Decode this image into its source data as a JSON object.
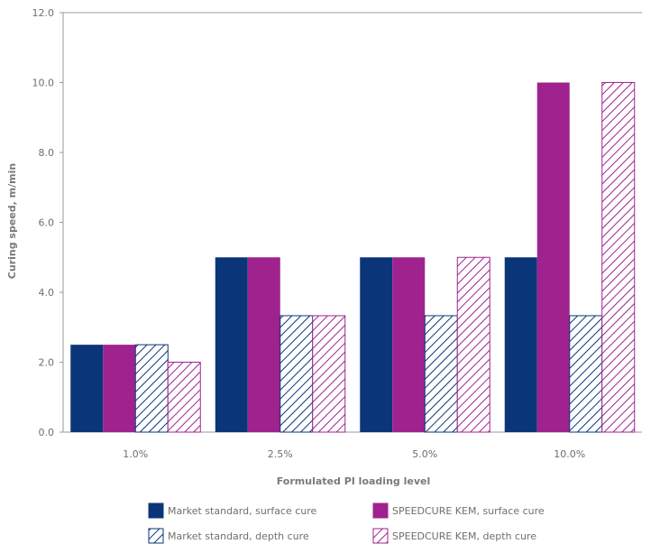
{
  "chart_data": {
    "type": "bar",
    "title": "",
    "xlabel": "Formulated PI loading level",
    "ylabel": "Curing speed, m/min",
    "categories": [
      "1.0%",
      "2.5%",
      "5.0%",
      "10.0%"
    ],
    "ylim": [
      0,
      12
    ],
    "yticks": [
      "0.0",
      "2.0",
      "4.0",
      "6.0",
      "8.0",
      "10.0",
      "12.0"
    ],
    "grid": false,
    "legend_position": "bottom",
    "series": [
      {
        "name": "Market standard, surface cure",
        "values": [
          2.5,
          5.0,
          5.0,
          5.0
        ],
        "color": "#0b3579",
        "pattern": "solid"
      },
      {
        "name": "SPEEDCURE KEM, surface cure",
        "values": [
          2.5,
          5.0,
          5.0,
          10.0
        ],
        "color": "#a0228f",
        "pattern": "solid"
      },
      {
        "name": "Market standard, depth cure",
        "values": [
          2.5,
          3.33,
          3.33,
          3.33
        ],
        "color": "#0b3579",
        "pattern": "hatched"
      },
      {
        "name": "SPEEDCURE KEM, depth cure",
        "values": [
          2.0,
          3.33,
          5.0,
          10.0
        ],
        "color": "#a0228f",
        "pattern": "hatched"
      }
    ]
  }
}
